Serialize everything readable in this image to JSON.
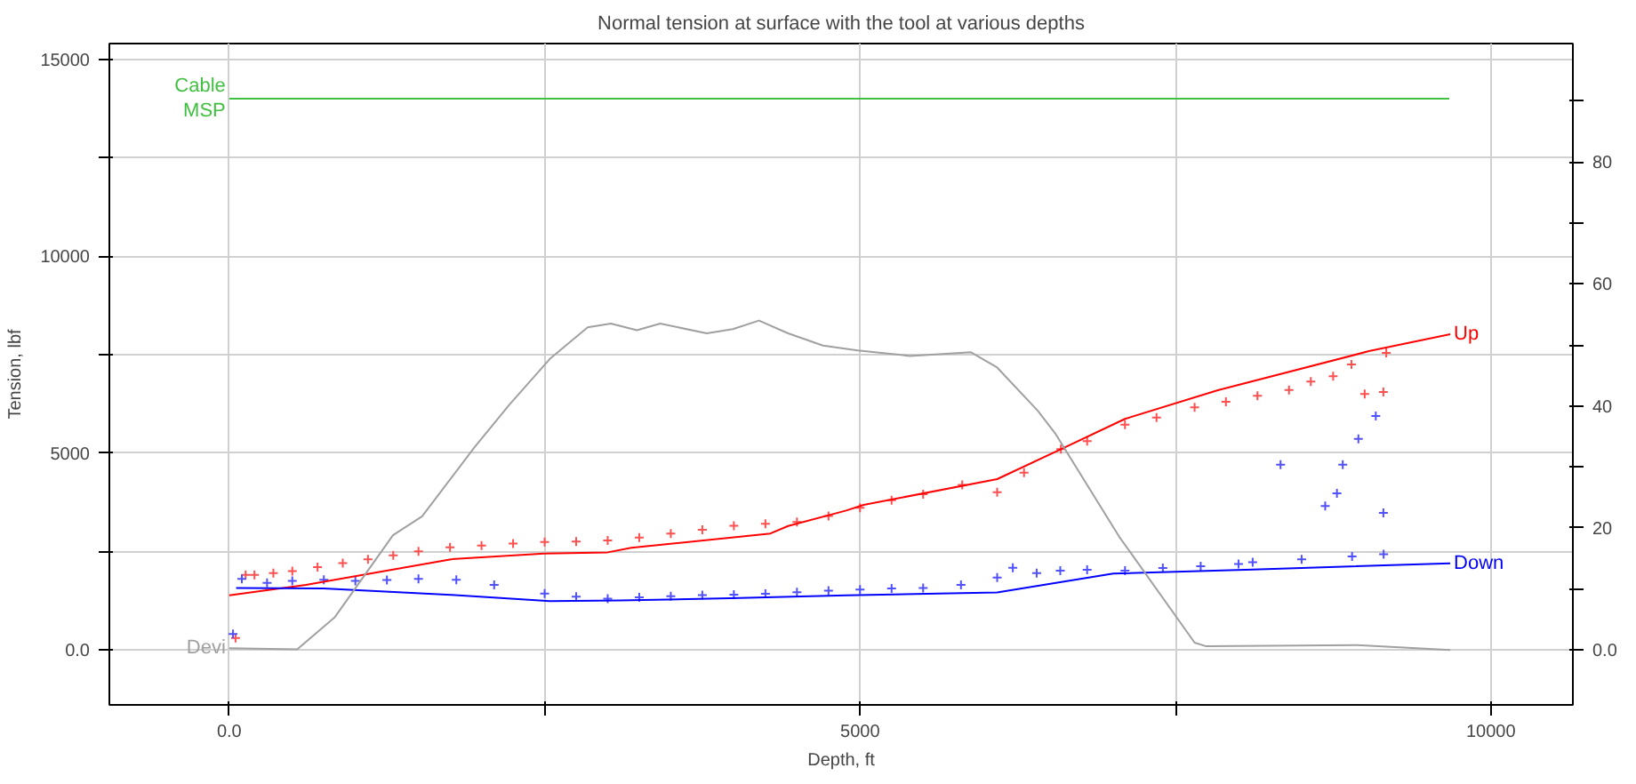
{
  "chart_data": {
    "type": "line",
    "title": "Normal tension at surface with the tool at various depths",
    "xlabel": "Depth, ft",
    "ylabel": "Tension, lbf",
    "xlim": [
      -950,
      10650
    ],
    "xticks": [
      {
        "value": 0,
        "label": "0.0"
      },
      {
        "value": 2500,
        "label": null
      },
      5000,
      {
        "value": 7500,
        "label": null
      },
      10000
    ],
    "ylim": [
      -1400,
      15400
    ],
    "yticks": [
      {
        "value": 0,
        "label": "0.0"
      },
      {
        "value": 2500,
        "label": null
      },
      5000,
      {
        "value": 7500,
        "label": null
      },
      10000,
      {
        "value": 12500,
        "label": null
      },
      15000
    ],
    "y2lim": [
      -9,
      99.4
    ],
    "y2ticks": [
      {
        "value": 0,
        "label": "0.0"
      },
      {
        "value": 10,
        "label": null
      },
      20,
      {
        "value": 30,
        "label": null
      },
      40,
      {
        "value": 50,
        "label": null
      },
      60,
      {
        "value": 70,
        "label": null
      },
      80,
      {
        "value": 90,
        "label": null
      }
    ],
    "grid": true,
    "series": [
      {
        "name": "Cable MSP",
        "color": "#40c040",
        "x": [
          0,
          9670
        ],
        "values": [
          14000,
          14000
        ]
      },
      {
        "type": "scatter",
        "marker": "cross",
        "color": "#ff5050",
        "x": [
          50,
          130,
          200,
          350,
          500,
          700,
          900,
          1100,
          1300,
          1500,
          1750,
          2000,
          2250,
          2500,
          2750,
          3000,
          3250,
          3500,
          3750,
          4000,
          4250,
          4500,
          4750,
          5000,
          5250,
          5500,
          5810,
          6087,
          6300,
          6592,
          6800,
          7100,
          7350,
          7652,
          7900,
          8150,
          8400,
          8573,
          8750,
          8895,
          9000,
          9148,
          9171
        ],
        "values": [
          300,
          1900,
          1900,
          1950,
          2000,
          2100,
          2200,
          2300,
          2400,
          2500,
          2600,
          2650,
          2700,
          2736,
          2750,
          2780,
          2850,
          2950,
          3050,
          3150,
          3200,
          3245,
          3400,
          3610,
          3800,
          3950,
          4190,
          4000,
          4500,
          5095,
          5300,
          5720,
          5900,
          6157,
          6300,
          6450,
          6600,
          6812,
          6950,
          7250,
          6500,
          6550,
          7540
        ]
      },
      {
        "type": "scatter",
        "marker": "cross",
        "color": "#5050ff",
        "x": [
          30,
          100,
          300,
          500,
          750,
          1000,
          1250,
          1500,
          1800,
          2100,
          2500,
          2750,
          3000,
          3250,
          3500,
          3750,
          4000,
          4250,
          4500,
          4750,
          5000,
          5250,
          5500,
          5800,
          6087,
          6211,
          6400,
          6587,
          6800,
          7100,
          7400,
          7700,
          8000,
          8112,
          8333,
          8500,
          8687,
          8780,
          8826,
          8900,
          8950,
          9088,
          9148,
          9150
        ],
        "values": [
          400,
          1800,
          1700,
          1750,
          1780,
          1750,
          1770,
          1800,
          1780,
          1650,
          1427,
          1350,
          1300,
          1330,
          1360,
          1390,
          1400,
          1420,
          1460,
          1500,
          1528,
          1560,
          1572,
          1650,
          1834,
          2083,
          1950,
          2009,
          2030,
          2009,
          2080,
          2120,
          2180,
          2227,
          4700,
          2300,
          3650,
          3974,
          4700,
          2371,
          5357,
          5940,
          3480,
          2430
        ]
      },
      {
        "name": "Up",
        "color": "#ff0000",
        "x": [
          0,
          608,
          1758,
          2495,
          3000,
          3187,
          4290,
          4430,
          4890,
          5028,
          6087,
          6592,
          7100,
          7836,
          9033,
          9678
        ],
        "values": [
          1385,
          1650,
          2300,
          2445,
          2475,
          2590,
          2955,
          3145,
          3537,
          3680,
          4336,
          5095,
          5865,
          6594,
          7585,
          8017
        ]
      },
      {
        "name": "Down",
        "color": "#0000ff",
        "x": [
          55,
          746,
          1758,
          2541,
          3094,
          3968,
          4890,
          6087,
          7007,
          8112,
          9678
        ],
        "values": [
          1572,
          1560,
          1397,
          1236,
          1253,
          1310,
          1384,
          1454,
          1934,
          2039,
          2196
        ]
      },
      {
        "name": "Devi",
        "axis": "y2",
        "color": "#a0a0a0",
        "x": [
          0,
          539,
          838,
          1298,
          1529,
          1943,
          2220,
          2541,
          2841,
          3025,
          3232,
          3416,
          3785,
          3992,
          4199,
          4430,
          4706,
          4982,
          5396,
          5880,
          6087,
          6409,
          6547,
          7053,
          7652,
          7744,
          8941,
          9678
        ],
        "values": [
          0.3,
          0.1,
          5.4,
          18.8,
          21.9,
          33.2,
          40.2,
          47.7,
          52.9,
          53.5,
          52.4,
          53.5,
          51.9,
          52.6,
          54.0,
          51.9,
          49.9,
          49.1,
          48.2,
          48.8,
          46.3,
          39.2,
          35.5,
          18.6,
          1.2,
          0.6,
          0.8,
          0.0
        ]
      }
    ]
  }
}
